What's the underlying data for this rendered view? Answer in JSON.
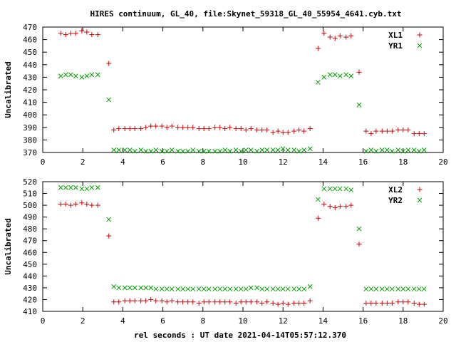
{
  "title": "HIRES continuum, GL_40, file:Skynet_59318_GL_40_55954_4641.cyb.txt",
  "xlabel": "rel seconds : UT date 2021-04-14T05:57:12.370",
  "colors": {
    "series_plus": "#cc0000",
    "series_x": "#00a000"
  },
  "chart_data": [
    {
      "type": "scatter",
      "ylabel": "Uncalibrated",
      "xlim": [
        0,
        20
      ],
      "ylim": [
        370,
        470
      ],
      "xticks": [
        0,
        2,
        4,
        6,
        8,
        10,
        12,
        14,
        16,
        18,
        20
      ],
      "yticks": [
        370,
        380,
        390,
        400,
        410,
        420,
        430,
        440,
        450,
        460,
        470
      ],
      "legend_position": "top-right",
      "series": [
        {
          "name": "XL1",
          "marker": "plus",
          "points": [
            [
              0.9,
              465
            ],
            [
              1.15,
              464
            ],
            [
              1.4,
              465
            ],
            [
              1.65,
              465
            ],
            [
              1.95,
              467
            ],
            [
              2.2,
              466
            ],
            [
              2.45,
              464
            ],
            [
              2.75,
              464
            ],
            [
              3.3,
              441
            ],
            [
              3.55,
              388
            ],
            [
              3.8,
              389
            ],
            [
              4.1,
              389
            ],
            [
              4.35,
              389
            ],
            [
              4.6,
              389
            ],
            [
              4.9,
              389
            ],
            [
              5.15,
              390
            ],
            [
              5.4,
              391
            ],
            [
              5.65,
              391
            ],
            [
              5.95,
              391
            ],
            [
              6.2,
              390
            ],
            [
              6.45,
              391
            ],
            [
              6.75,
              390
            ],
            [
              7.0,
              390
            ],
            [
              7.25,
              390
            ],
            [
              7.5,
              390
            ],
            [
              7.8,
              389
            ],
            [
              8.05,
              389
            ],
            [
              8.3,
              389
            ],
            [
              8.6,
              390
            ],
            [
              8.85,
              390
            ],
            [
              9.1,
              389
            ],
            [
              9.35,
              390
            ],
            [
              9.65,
              389
            ],
            [
              9.9,
              389
            ],
            [
              10.15,
              388
            ],
            [
              10.4,
              389
            ],
            [
              10.7,
              388
            ],
            [
              10.95,
              388
            ],
            [
              11.2,
              388
            ],
            [
              11.5,
              386
            ],
            [
              11.75,
              387
            ],
            [
              12.0,
              386
            ],
            [
              12.25,
              386
            ],
            [
              12.55,
              387
            ],
            [
              12.8,
              388
            ],
            [
              13.05,
              387
            ],
            [
              13.35,
              389
            ],
            [
              13.75,
              453
            ],
            [
              14.05,
              465
            ],
            [
              14.35,
              462
            ],
            [
              14.6,
              461
            ],
            [
              14.85,
              463
            ],
            [
              15.15,
              462
            ],
            [
              15.4,
              463
            ],
            [
              15.8,
              434
            ],
            [
              16.15,
              387
            ],
            [
              16.4,
              385
            ],
            [
              16.65,
              387
            ],
            [
              16.95,
              387
            ],
            [
              17.2,
              387
            ],
            [
              17.45,
              387
            ],
            [
              17.75,
              388
            ],
            [
              18.0,
              388
            ],
            [
              18.25,
              388
            ],
            [
              18.55,
              385
            ],
            [
              18.8,
              385
            ],
            [
              19.05,
              385
            ]
          ]
        },
        {
          "name": "YR1",
          "marker": "x",
          "points": [
            [
              0.9,
              431
            ],
            [
              1.15,
              432
            ],
            [
              1.4,
              432
            ],
            [
              1.65,
              431
            ],
            [
              1.95,
              430
            ],
            [
              2.2,
              431
            ],
            [
              2.45,
              432
            ],
            [
              2.75,
              432
            ],
            [
              3.3,
              412
            ],
            [
              3.55,
              372
            ],
            [
              3.8,
              372
            ],
            [
              4.1,
              372
            ],
            [
              4.35,
              372
            ],
            [
              4.6,
              371
            ],
            [
              4.9,
              372
            ],
            [
              5.15,
              371
            ],
            [
              5.4,
              371
            ],
            [
              5.65,
              372
            ],
            [
              5.95,
              371
            ],
            [
              6.2,
              371
            ],
            [
              6.45,
              372
            ],
            [
              6.75,
              371
            ],
            [
              7.0,
              371
            ],
            [
              7.25,
              371
            ],
            [
              7.5,
              372
            ],
            [
              7.8,
              371
            ],
            [
              8.05,
              371
            ],
            [
              8.3,
              371
            ],
            [
              8.6,
              371
            ],
            [
              8.85,
              371
            ],
            [
              9.1,
              372
            ],
            [
              9.35,
              371
            ],
            [
              9.65,
              372
            ],
            [
              9.9,
              371
            ],
            [
              10.15,
              372
            ],
            [
              10.4,
              372
            ],
            [
              10.7,
              371
            ],
            [
              10.95,
              372
            ],
            [
              11.2,
              372
            ],
            [
              11.5,
              372
            ],
            [
              11.75,
              372
            ],
            [
              12.0,
              373
            ],
            [
              12.25,
              372
            ],
            [
              12.55,
              372
            ],
            [
              12.8,
              371
            ],
            [
              13.05,
              372
            ],
            [
              13.35,
              373
            ],
            [
              13.75,
              426
            ],
            [
              14.05,
              430
            ],
            [
              14.35,
              432
            ],
            [
              14.6,
              432
            ],
            [
              14.85,
              431
            ],
            [
              15.15,
              432
            ],
            [
              15.4,
              431
            ],
            [
              15.8,
              408
            ],
            [
              16.15,
              371
            ],
            [
              16.4,
              372
            ],
            [
              16.65,
              371
            ],
            [
              16.95,
              372
            ],
            [
              17.2,
              372
            ],
            [
              17.45,
              371
            ],
            [
              17.75,
              372
            ],
            [
              18.0,
              371
            ],
            [
              18.25,
              372
            ],
            [
              18.55,
              372
            ],
            [
              18.8,
              371
            ],
            [
              19.05,
              372
            ]
          ]
        }
      ]
    },
    {
      "type": "scatter",
      "ylabel": "Uncalibrated",
      "xlim": [
        0,
        20
      ],
      "ylim": [
        410,
        520
      ],
      "xticks": [
        0,
        2,
        4,
        6,
        8,
        10,
        12,
        14,
        16,
        18,
        20
      ],
      "yticks": [
        410,
        420,
        430,
        440,
        450,
        460,
        470,
        480,
        490,
        500,
        510,
        520
      ],
      "legend_position": "top-right",
      "series": [
        {
          "name": "XL2",
          "marker": "plus",
          "points": [
            [
              0.9,
              501
            ],
            [
              1.15,
              501
            ],
            [
              1.4,
              500
            ],
            [
              1.65,
              501
            ],
            [
              1.95,
              502
            ],
            [
              2.2,
              501
            ],
            [
              2.45,
              500
            ],
            [
              2.75,
              500
            ],
            [
              3.3,
              474
            ],
            [
              3.55,
              418
            ],
            [
              3.8,
              418
            ],
            [
              4.1,
              419
            ],
            [
              4.35,
              419
            ],
            [
              4.6,
              419
            ],
            [
              4.9,
              419
            ],
            [
              5.15,
              419
            ],
            [
              5.4,
              420
            ],
            [
              5.65,
              419
            ],
            [
              5.95,
              419
            ],
            [
              6.2,
              418
            ],
            [
              6.45,
              419
            ],
            [
              6.75,
              418
            ],
            [
              7.0,
              418
            ],
            [
              7.25,
              418
            ],
            [
              7.5,
              418
            ],
            [
              7.8,
              417
            ],
            [
              8.05,
              418
            ],
            [
              8.3,
              418
            ],
            [
              8.6,
              418
            ],
            [
              8.85,
              418
            ],
            [
              9.1,
              418
            ],
            [
              9.35,
              418
            ],
            [
              9.65,
              417
            ],
            [
              9.9,
              418
            ],
            [
              10.15,
              418
            ],
            [
              10.4,
              418
            ],
            [
              10.7,
              418
            ],
            [
              10.95,
              417
            ],
            [
              11.2,
              418
            ],
            [
              11.5,
              417
            ],
            [
              11.75,
              416
            ],
            [
              12.0,
              417
            ],
            [
              12.25,
              416
            ],
            [
              12.55,
              417
            ],
            [
              12.8,
              417
            ],
            [
              13.05,
              417
            ],
            [
              13.35,
              419
            ],
            [
              13.75,
              489
            ],
            [
              14.05,
              501
            ],
            [
              14.35,
              499
            ],
            [
              14.6,
              498
            ],
            [
              14.85,
              499
            ],
            [
              15.15,
              499
            ],
            [
              15.4,
              500
            ],
            [
              15.8,
              467
            ],
            [
              16.15,
              417
            ],
            [
              16.4,
              417
            ],
            [
              16.65,
              417
            ],
            [
              16.95,
              417
            ],
            [
              17.2,
              417
            ],
            [
              17.45,
              417
            ],
            [
              17.75,
              418
            ],
            [
              18.0,
              418
            ],
            [
              18.25,
              418
            ],
            [
              18.55,
              417
            ],
            [
              18.8,
              416
            ],
            [
              19.05,
              416
            ]
          ]
        },
        {
          "name": "YR2",
          "marker": "x",
          "points": [
            [
              0.9,
              515
            ],
            [
              1.15,
              515
            ],
            [
              1.4,
              515
            ],
            [
              1.65,
              515
            ],
            [
              1.95,
              514
            ],
            [
              2.2,
              514
            ],
            [
              2.45,
              515
            ],
            [
              2.75,
              515
            ],
            [
              3.3,
              488
            ],
            [
              3.55,
              431
            ],
            [
              3.8,
              430
            ],
            [
              4.1,
              430
            ],
            [
              4.35,
              430
            ],
            [
              4.6,
              430
            ],
            [
              4.9,
              430
            ],
            [
              5.15,
              430
            ],
            [
              5.4,
              430
            ],
            [
              5.65,
              429
            ],
            [
              5.95,
              429
            ],
            [
              6.2,
              429
            ],
            [
              6.45,
              429
            ],
            [
              6.75,
              429
            ],
            [
              7.0,
              429
            ],
            [
              7.25,
              429
            ],
            [
              7.5,
              429
            ],
            [
              7.8,
              429
            ],
            [
              8.05,
              429
            ],
            [
              8.3,
              429
            ],
            [
              8.6,
              429
            ],
            [
              8.85,
              429
            ],
            [
              9.1,
              429
            ],
            [
              9.35,
              429
            ],
            [
              9.65,
              429
            ],
            [
              9.9,
              429
            ],
            [
              10.15,
              429
            ],
            [
              10.4,
              430
            ],
            [
              10.7,
              430
            ],
            [
              10.95,
              429
            ],
            [
              11.2,
              429
            ],
            [
              11.5,
              429
            ],
            [
              11.75,
              429
            ],
            [
              12.0,
              429
            ],
            [
              12.25,
              429
            ],
            [
              12.55,
              429
            ],
            [
              12.8,
              429
            ],
            [
              13.05,
              429
            ],
            [
              13.35,
              431
            ],
            [
              13.75,
              505
            ],
            [
              14.05,
              514
            ],
            [
              14.35,
              514
            ],
            [
              14.6,
              514
            ],
            [
              14.85,
              514
            ],
            [
              15.15,
              514
            ],
            [
              15.4,
              513
            ],
            [
              15.8,
              480
            ],
            [
              16.15,
              429
            ],
            [
              16.4,
              429
            ],
            [
              16.65,
              429
            ],
            [
              16.95,
              429
            ],
            [
              17.2,
              429
            ],
            [
              17.45,
              429
            ],
            [
              17.75,
              429
            ],
            [
              18.0,
              429
            ],
            [
              18.25,
              429
            ],
            [
              18.55,
              429
            ],
            [
              18.8,
              429
            ],
            [
              19.05,
              429
            ]
          ]
        }
      ]
    }
  ]
}
